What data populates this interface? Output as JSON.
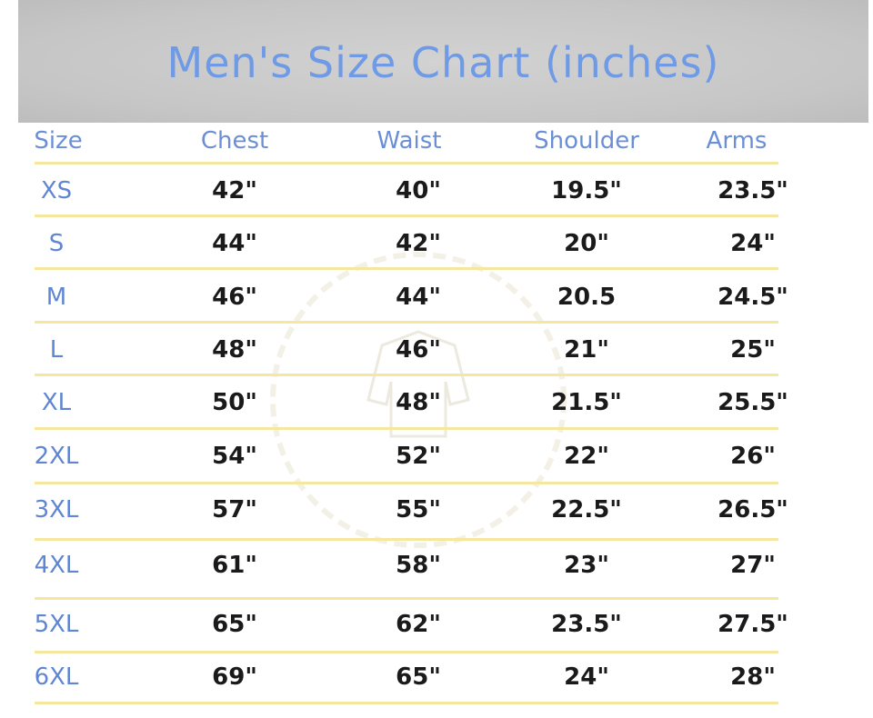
{
  "chart_data": {
    "type": "table",
    "title": "Men's Size Chart (inches)",
    "columns": [
      "Size",
      "Chest",
      "Waist",
      "Shoulder",
      "Arms"
    ],
    "rows": [
      [
        "XS",
        "42\"",
        "40\"",
        "19.5\"",
        "23.5\""
      ],
      [
        "S",
        "44\"",
        "42\"",
        "20\"",
        "24\""
      ],
      [
        "M",
        "46\"",
        "44\"",
        "20.5",
        "24.5\""
      ],
      [
        "L",
        "48\"",
        "46\"",
        "21\"",
        "25\""
      ],
      [
        "XL",
        "50\"",
        "48\"",
        "21.5\"",
        "25.5\""
      ],
      [
        "2XL",
        "54\"",
        "52\"",
        "22\"",
        "26\""
      ],
      [
        "3XL",
        "57\"",
        "55\"",
        "22.5\"",
        "26.5\""
      ],
      [
        "4XL",
        "61\"",
        "58\"",
        "23\"",
        "27\""
      ],
      [
        "5XL",
        "65\"",
        "62\"",
        "23.5\"",
        "27.5\""
      ],
      [
        "6XL",
        "69\"",
        "65\"",
        "24\"",
        "28\""
      ]
    ],
    "colors": {
      "title": "#6e9ae6",
      "header": "#6a8fd6",
      "size_label": "#5f86d2",
      "values": "#1a1a1a",
      "row_line": "#f5e6a0",
      "banner": "#c8c8c8"
    }
  }
}
